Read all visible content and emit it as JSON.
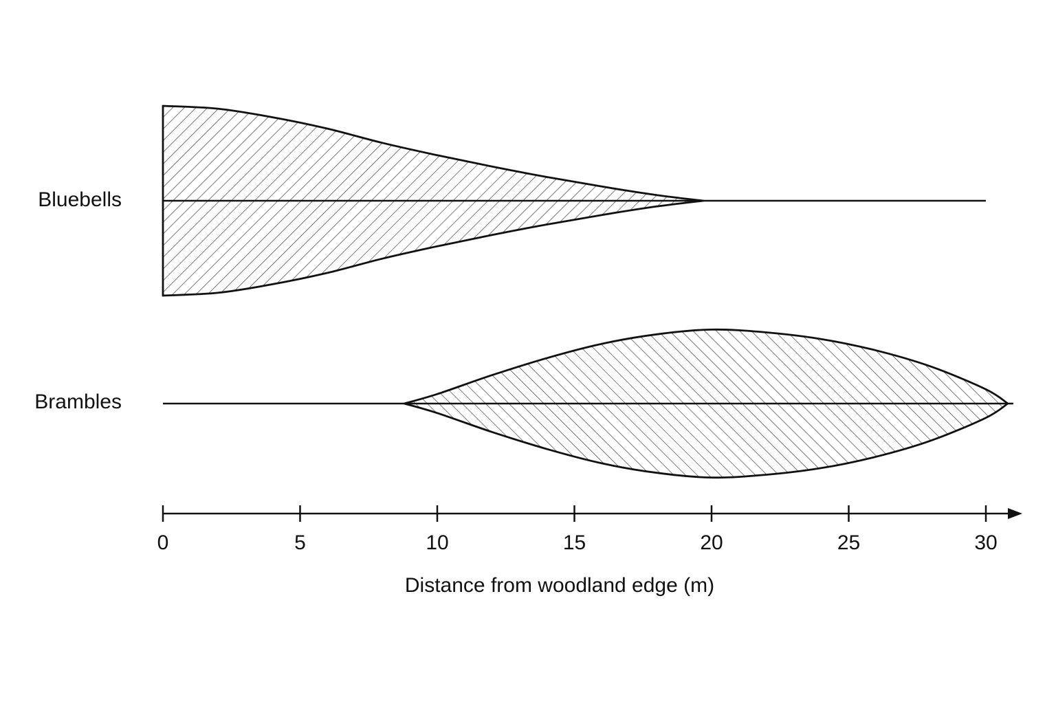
{
  "chart_data": {
    "type": "kite",
    "xlabel": "Distance from woodland edge (m)",
    "xlim": [
      0,
      31
    ],
    "x_ticks": [
      0,
      5,
      10,
      15,
      20,
      25,
      30
    ],
    "x_tick_labels": [
      "0",
      "5",
      "10",
      "15",
      "20",
      "25",
      "30"
    ],
    "grid": false,
    "legend": "none",
    "hatch": "diagonal lines",
    "colors": {
      "stroke": "#111111",
      "hatch": "#333333",
      "background": "#ffffff"
    },
    "series": [
      {
        "name": "Bluebells",
        "hatch_direction": "forward",
        "baseline_end": 30,
        "points": [
          {
            "x": 0,
            "y": 1.0
          },
          {
            "x": 2,
            "y": 0.97
          },
          {
            "x": 4,
            "y": 0.88
          },
          {
            "x": 6,
            "y": 0.76
          },
          {
            "x": 8,
            "y": 0.61
          },
          {
            "x": 10,
            "y": 0.48
          },
          {
            "x": 12,
            "y": 0.36
          },
          {
            "x": 14,
            "y": 0.25
          },
          {
            "x": 16,
            "y": 0.15
          },
          {
            "x": 18,
            "y": 0.06
          },
          {
            "x": 19.7,
            "y": 0.0
          }
        ]
      },
      {
        "name": "Brambles",
        "hatch_direction": "backward",
        "baseline_end": 31,
        "points": [
          {
            "x": 8.8,
            "y": 0.0
          },
          {
            "x": 10,
            "y": 0.1
          },
          {
            "x": 12,
            "y": 0.3
          },
          {
            "x": 14,
            "y": 0.48
          },
          {
            "x": 16,
            "y": 0.63
          },
          {
            "x": 18,
            "y": 0.73
          },
          {
            "x": 20,
            "y": 0.78
          },
          {
            "x": 22,
            "y": 0.75
          },
          {
            "x": 24,
            "y": 0.68
          },
          {
            "x": 26,
            "y": 0.56
          },
          {
            "x": 28,
            "y": 0.39
          },
          {
            "x": 30,
            "y": 0.15
          },
          {
            "x": 30.8,
            "y": 0.0
          }
        ]
      }
    ]
  }
}
